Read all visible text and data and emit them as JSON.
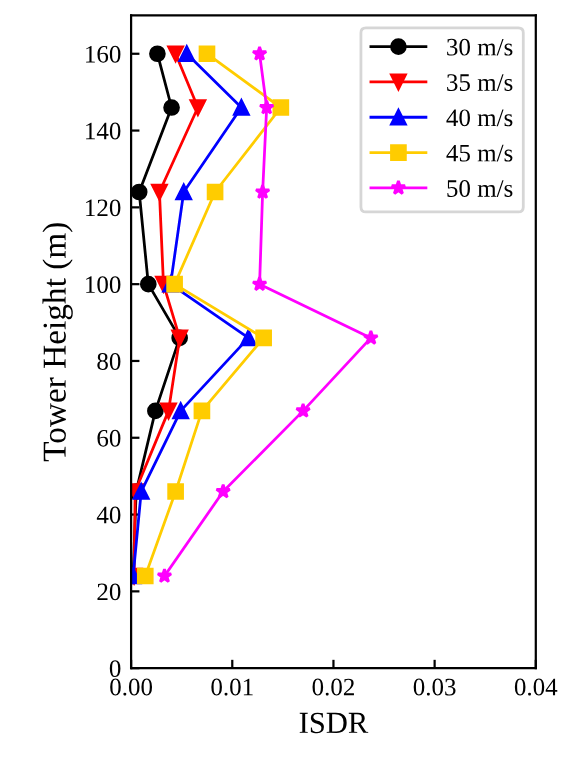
{
  "chart_data": {
    "type": "line",
    "xlabel": "ISDR",
    "ylabel": "Tower Height (m)",
    "xlim": [
      0,
      0.04
    ],
    "xticks": [
      {
        "value": 0,
        "label": "0.00"
      },
      0.01,
      0.02,
      0.03,
      0.04
    ],
    "ylim": [
      0,
      170
    ],
    "yticks": [
      0,
      20,
      40,
      60,
      80,
      100,
      120,
      140,
      160
    ],
    "grid": false,
    "legend": "top right",
    "line_style": "solid",
    "series": [
      {
        "name": "30 m/s",
        "color": "#000000",
        "marker": "circle",
        "x": [
          0.0002,
          0.0005,
          0.0024,
          0.0048,
          0.0017,
          0.0008,
          0.004,
          0.0026
        ],
        "values": [
          24,
          46,
          67,
          86,
          100,
          124,
          146,
          160
        ]
      },
      {
        "name": "35 m/s",
        "color": "#ff0000",
        "marker": "triangle_down",
        "x": [
          0.0003,
          0.0004,
          0.0037,
          0.0048,
          0.0032,
          0.0028,
          0.0066,
          0.0044
        ],
        "values": [
          24,
          46,
          67,
          86,
          100,
          124,
          146,
          160
        ]
      },
      {
        "name": "40 m/s",
        "color": "#0000ff",
        "marker": "triangle",
        "x": [
          0.0002,
          0.001,
          0.0049,
          0.0116,
          0.0039,
          0.0052,
          0.0109,
          0.0055
        ],
        "values": [
          24,
          46,
          67,
          86,
          100,
          124,
          146,
          160
        ]
      },
      {
        "name": "45 m/s",
        "color": "#ffcc00",
        "marker": "square",
        "x": [
          0.0014,
          0.0044,
          0.007,
          0.0131,
          0.0043,
          0.0083,
          0.0148,
          0.0075
        ],
        "values": [
          24,
          46,
          67,
          86,
          100,
          124,
          146,
          160
        ]
      },
      {
        "name": "50 m/s",
        "color": "#ff00ff",
        "marker": "star",
        "x": [
          0.0033,
          0.0091,
          0.017,
          0.0237,
          0.0127,
          0.013,
          0.0134,
          0.0127
        ],
        "values": [
          24,
          46,
          67,
          86,
          100,
          124,
          146,
          160
        ]
      }
    ]
  }
}
